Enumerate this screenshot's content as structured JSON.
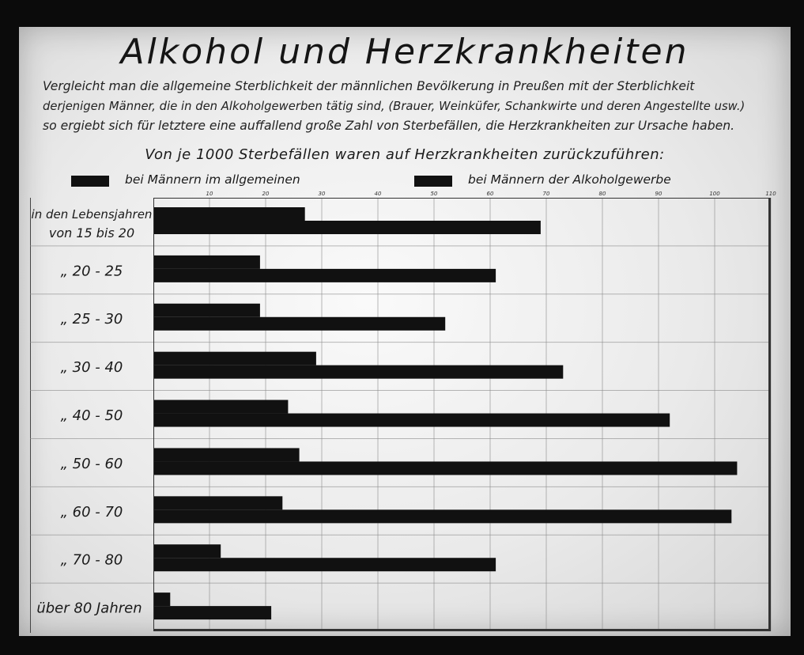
{
  "title": "Alkohol und Herzkrankheiten",
  "intro_lines": [
    "Vergleicht man die allgemeine Sterblichkeit der männlichen Bevölkerung in Preußen mit der Sterblichkeit",
    "derjenigen Männer, die in den Alkoholgewerben tätig sind, (Brauer, Weinküfer, Schankwirte und deren Angestellte usw.)",
    "so ergiebt sich für letztere eine auffallend große Zahl von Sterbefällen, die Herzkrankheiten zur Ursache haben."
  ],
  "subtitle": "Von je 1000 Sterbefällen waren auf Herzkrankheiten zurückzuführen:",
  "legend": {
    "series1": "bei Männern im allgemeinen",
    "series2": "bei Männern der Alkoholgewerbe"
  },
  "colors": {
    "bar": "#111111",
    "grid": "#8a8a8a",
    "background": "#ececec"
  },
  "chart_data": {
    "type": "bar",
    "orientation": "horizontal",
    "title": "Von je 1000 Sterbefällen waren auf Herzkrankheiten zurückzuführen:",
    "categories": [
      [
        "in den Lebensjahren",
        "von 15 bis 20"
      ],
      "„ 20 - 25",
      "„ 25 - 30",
      "„ 30 - 40",
      "„ 40 - 50",
      "„ 50 - 60",
      "„ 60 - 70",
      "„ 70 - 80",
      "über 80 Jahren"
    ],
    "series": [
      {
        "name": "bei Männern im allgemeinen",
        "values": [
          27,
          19,
          19,
          29,
          24,
          26,
          23,
          12,
          3
        ]
      },
      {
        "name": "bei Männern der Alkoholgewerbe",
        "values": [
          69,
          61,
          52,
          73,
          92,
          104,
          103,
          61,
          21
        ]
      }
    ],
    "x_ticks": [
      10,
      20,
      30,
      40,
      50,
      60,
      70,
      80,
      90,
      100,
      110
    ],
    "xlim": [
      0,
      110
    ],
    "grid": true,
    "legend_position": "top"
  }
}
